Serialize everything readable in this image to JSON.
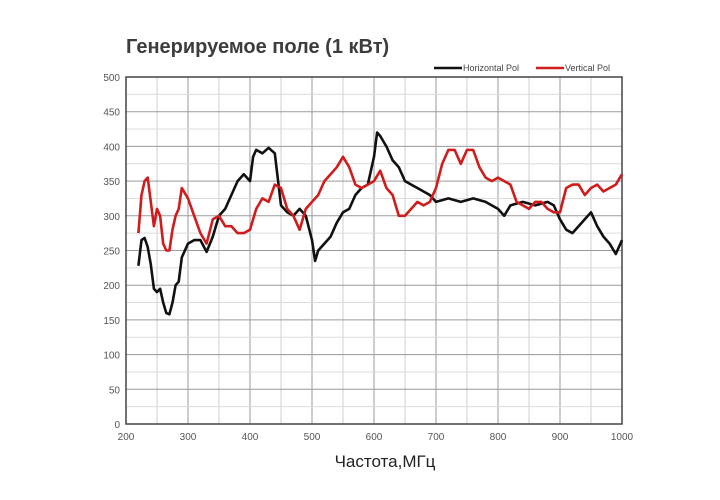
{
  "chart_data": {
    "type": "line",
    "title": "Генерируемое поле (1 кВт)",
    "xlabel": "Частота,МГц",
    "ylabel": "",
    "xlim": [
      200,
      1000
    ],
    "ylim": [
      0,
      500
    ],
    "xticks": [
      200,
      300,
      400,
      500,
      600,
      700,
      800,
      900,
      1000
    ],
    "yticks": [
      0,
      50,
      100,
      150,
      200,
      250,
      300,
      350,
      400,
      450,
      500
    ],
    "grid": true,
    "legend_position": "top-right",
    "series": [
      {
        "name": "Horizontal Pol",
        "color": "#111111",
        "x": [
          220,
          225,
          230,
          235,
          240,
          245,
          250,
          255,
          260,
          265,
          270,
          275,
          280,
          285,
          290,
          300,
          310,
          320,
          330,
          340,
          350,
          360,
          370,
          380,
          390,
          400,
          405,
          410,
          420,
          430,
          440,
          450,
          460,
          470,
          480,
          490,
          500,
          505,
          510,
          520,
          530,
          540,
          550,
          560,
          570,
          580,
          590,
          600,
          605,
          610,
          620,
          630,
          640,
          650,
          660,
          670,
          680,
          690,
          700,
          720,
          740,
          760,
          780,
          800,
          810,
          820,
          840,
          860,
          880,
          890,
          900,
          910,
          920,
          930,
          940,
          950,
          960,
          970,
          980,
          990,
          1000
        ],
        "y": [
          228,
          265,
          268,
          255,
          230,
          195,
          190,
          195,
          175,
          160,
          158,
          175,
          200,
          205,
          240,
          260,
          265,
          265,
          248,
          270,
          300,
          310,
          330,
          350,
          360,
          350,
          385,
          395,
          390,
          398,
          390,
          315,
          305,
          300,
          310,
          300,
          265,
          235,
          250,
          260,
          270,
          290,
          305,
          310,
          330,
          340,
          345,
          385,
          420,
          415,
          400,
          380,
          370,
          350,
          345,
          340,
          335,
          330,
          320,
          325,
          320,
          325,
          320,
          310,
          300,
          315,
          320,
          315,
          320,
          315,
          295,
          280,
          275,
          285,
          295,
          305,
          285,
          270,
          260,
          245,
          265
        ]
      },
      {
        "name": "Vertical Pol",
        "color": "#d01c1c",
        "x": [
          220,
          225,
          230,
          235,
          240,
          245,
          250,
          255,
          260,
          265,
          270,
          275,
          280,
          285,
          290,
          300,
          310,
          320,
          330,
          340,
          350,
          360,
          370,
          380,
          390,
          400,
          410,
          420,
          430,
          440,
          450,
          460,
          470,
          480,
          490,
          500,
          510,
          520,
          530,
          540,
          550,
          560,
          570,
          580,
          590,
          600,
          610,
          620,
          630,
          640,
          650,
          660,
          670,
          680,
          690,
          700,
          710,
          720,
          730,
          740,
          750,
          760,
          770,
          780,
          790,
          800,
          810,
          820,
          830,
          840,
          850,
          860,
          870,
          880,
          890,
          900,
          910,
          920,
          930,
          940,
          950,
          960,
          970,
          980,
          990,
          1000
        ],
        "y": [
          275,
          330,
          350,
          355,
          320,
          285,
          310,
          300,
          260,
          250,
          250,
          280,
          300,
          310,
          340,
          325,
          300,
          275,
          260,
          295,
          300,
          285,
          285,
          275,
          275,
          280,
          310,
          325,
          320,
          345,
          340,
          310,
          300,
          280,
          310,
          320,
          330,
          350,
          360,
          370,
          385,
          370,
          345,
          340,
          345,
          350,
          365,
          340,
          330,
          300,
          300,
          310,
          320,
          315,
          320,
          340,
          375,
          395,
          395,
          375,
          395,
          395,
          370,
          355,
          350,
          355,
          350,
          345,
          320,
          315,
          310,
          320,
          320,
          310,
          305,
          305,
          340,
          345,
          345,
          330,
          340,
          345,
          335,
          340,
          345,
          360
        ]
      }
    ]
  }
}
